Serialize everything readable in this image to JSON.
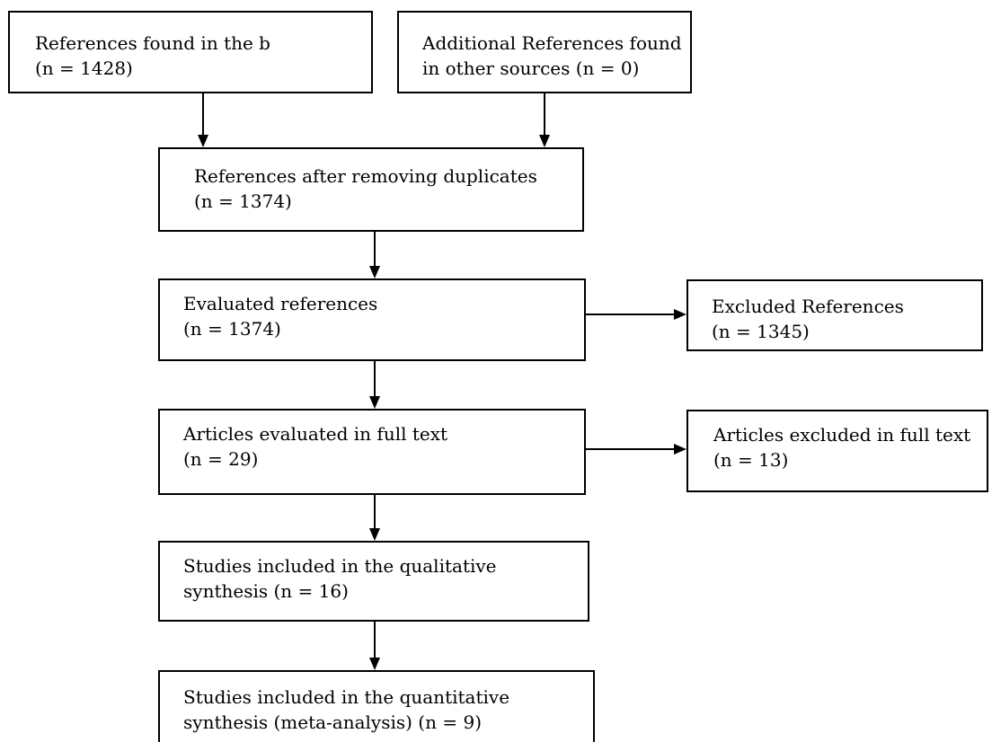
{
  "boxes": {
    "db_references": {
      "line1": "References found in the b",
      "line2": "(n = 1428)"
    },
    "other_references": {
      "line1": "Additional References found",
      "line2": "in other sources (n = 0)"
    },
    "after_duplicates": {
      "line1": "References after removing duplicates",
      "line2": "(n = 1374)"
    },
    "evaluated": {
      "line1": "Evaluated references",
      "line2": "(n = 1374)"
    },
    "excluded": {
      "line1": "Excluded References",
      "line2": "(n = 1345)"
    },
    "full_text": {
      "line1": "Articles evaluated in full text",
      "line2": "(n = 29)"
    },
    "excluded_full_text": {
      "line1": "Articles excluded in full text",
      "line2": "(n = 13)"
    },
    "qualitative": {
      "line1": "Studies included in the qualitative",
      "line2": "synthesis (n = 16)"
    },
    "quantitative": {
      "line1": "Studies included in the quantitative",
      "line2": "synthesis (meta-analysis) (n = 9)"
    }
  },
  "colors": {
    "stroke": "#000000",
    "background": "#ffffff"
  }
}
